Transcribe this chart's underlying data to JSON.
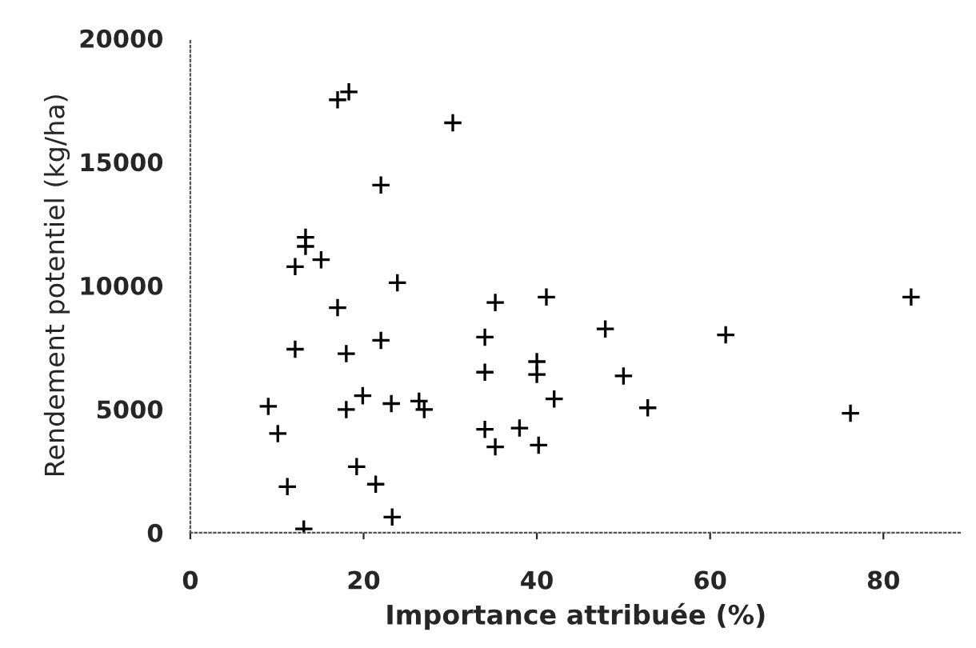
{
  "chart_data": {
    "type": "scatter",
    "xlabel": "Importance attribuée (%)",
    "ylabel": "Rendement potentiel (kg/ha)",
    "x": [
      9.0,
      10.1,
      11.2,
      13.1,
      12.1,
      12.1,
      13.3,
      13.3,
      15.1,
      17.0,
      17.0,
      18.3,
      18.0,
      18.0,
      19.9,
      19.2,
      21.4,
      23.3,
      22.0,
      22.0,
      23.9,
      23.2,
      26.4,
      27.0,
      30.3,
      34.0,
      34.0,
      34.0,
      35.2,
      35.2,
      41.1,
      38.0,
      40.0,
      40.0,
      40.2,
      42.0,
      47.9,
      50.0,
      52.8,
      61.8,
      76.2,
      83.2
    ],
    "series": [
      {
        "color": "#000000",
        "values": [
          5110,
          4010,
          1860,
          150,
          7420,
          10760,
          11950,
          11580,
          11040,
          9100,
          17510,
          17830,
          7240,
          4980,
          5540,
          2670,
          1960,
          630,
          7780,
          14060,
          10110,
          5220,
          5320,
          4980,
          16580,
          7910,
          6490,
          4180,
          3470,
          9310,
          9530,
          4230,
          6920,
          6400,
          3540,
          5410,
          8240,
          6340,
          5050,
          8000,
          4830,
          9530
        ]
      }
    ],
    "xlim": [
      0,
      89
    ],
    "ylim": [
      0,
      20000
    ],
    "xticks": [
      0,
      20,
      40,
      60,
      80
    ],
    "yticks": [
      0,
      5000,
      10000,
      15000,
      20000
    ],
    "marker": "cross",
    "grid": false,
    "legend": false
  }
}
